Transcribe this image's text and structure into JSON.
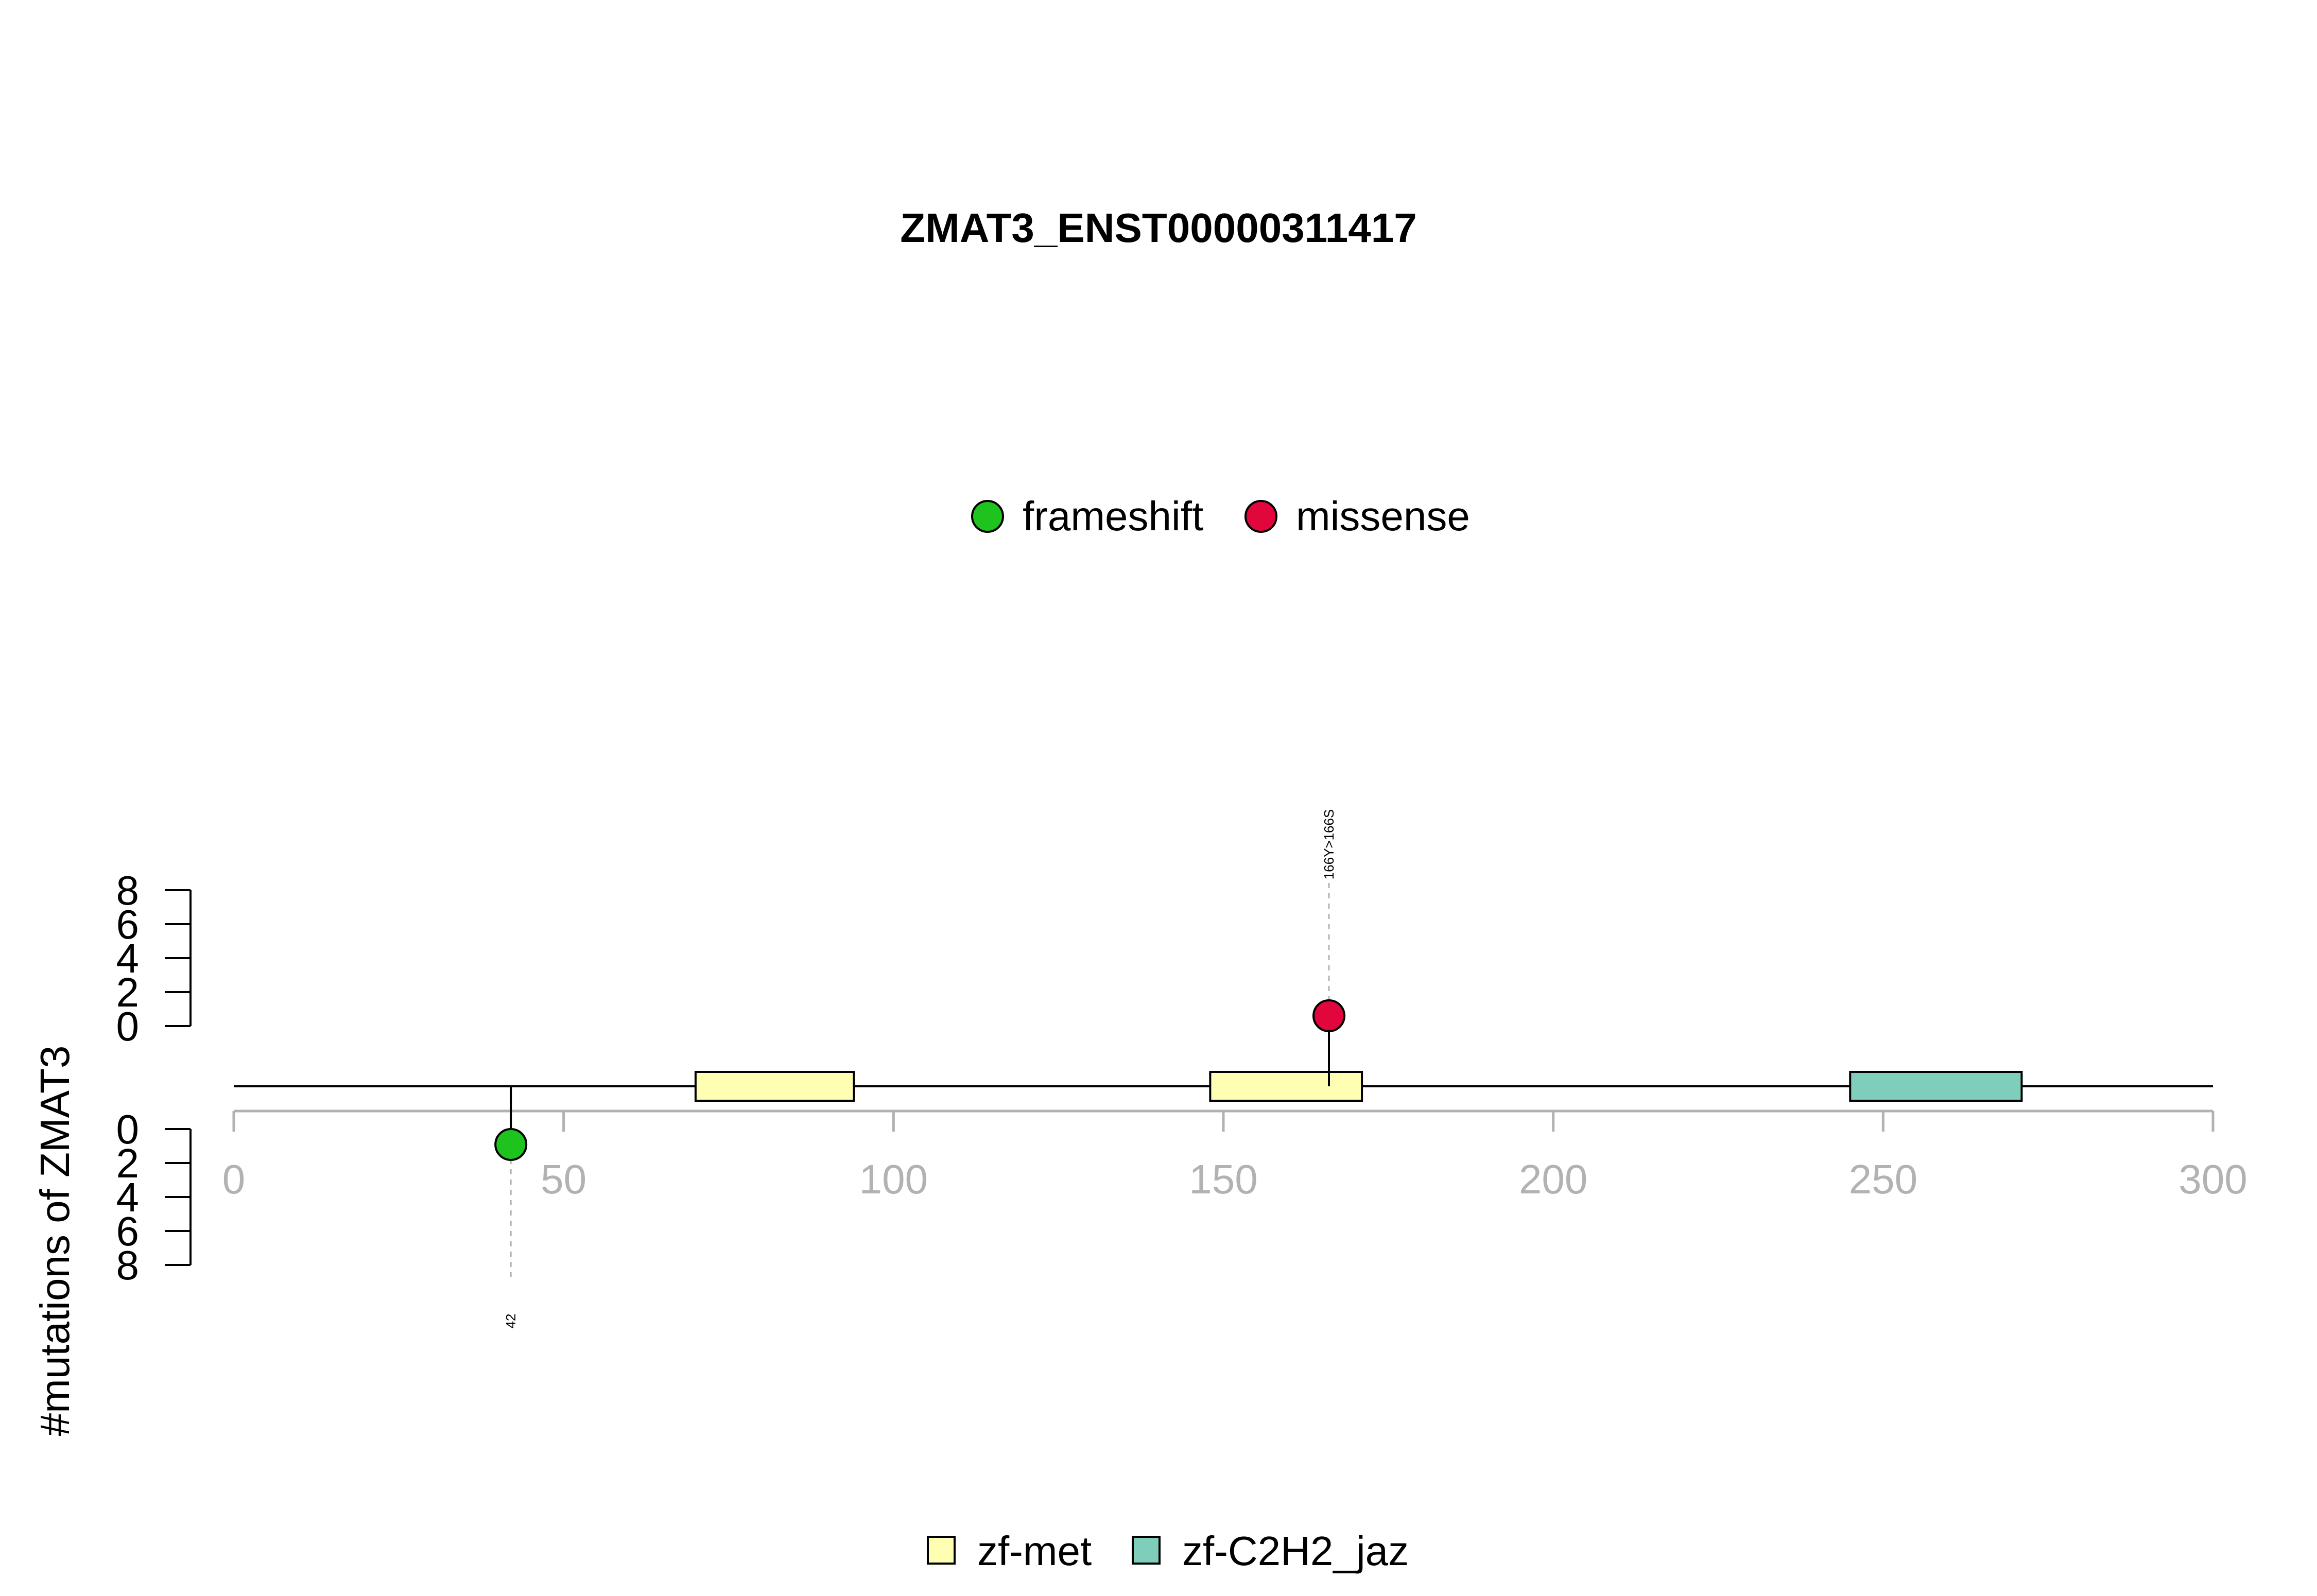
{
  "chart_data": {
    "type": "lollipop",
    "title": "ZMAT3_ENST00000311417",
    "ylabel": "#mutations of ZMAT3",
    "xlim": [
      0,
      300
    ],
    "x_ticks": [
      "0",
      "50",
      "100",
      "150",
      "200",
      "250",
      "300"
    ],
    "y_ticks_upper": [
      "0",
      "2",
      "4",
      "6",
      "8"
    ],
    "y_ticks_lower": [
      "0",
      "2",
      "4",
      "6",
      "8"
    ],
    "mutation_legend": [
      {
        "name": "frameshift",
        "color": "#1ec31e"
      },
      {
        "name": "missense",
        "color": "#e1063c"
      }
    ],
    "domain_legend": [
      {
        "name": "zf-met",
        "color": "#ffffb3"
      },
      {
        "name": "zf-C2H2_jaz",
        "color": "#7fcdbb"
      }
    ],
    "domains": [
      {
        "name": "zf-met",
        "start": 70,
        "end": 94,
        "color": "#ffffb3"
      },
      {
        "name": "zf-met",
        "start": 148,
        "end": 171,
        "color": "#ffffb3"
      },
      {
        "name": "zf-C2H2_jaz",
        "start": 245,
        "end": 271,
        "color": "#7fcdbb"
      }
    ],
    "mutations": [
      {
        "position": 42,
        "count": 1,
        "type": "frameshift",
        "side": "bottom",
        "label": "42",
        "color": "#1ec31e"
      },
      {
        "position": 166,
        "count": 1,
        "type": "missense",
        "side": "top",
        "label": "166Y>166S",
        "color": "#e1063c"
      }
    ]
  }
}
